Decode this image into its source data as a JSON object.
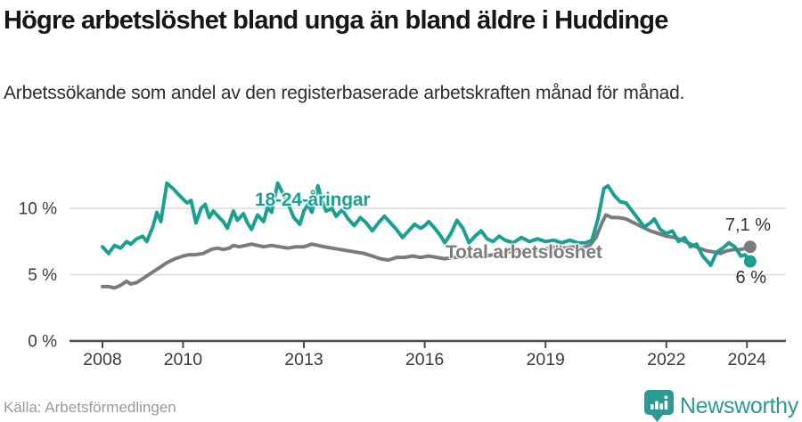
{
  "header": {
    "title": "Högre arbetslöshet bland unga än bland äldre i Huddinge",
    "subtitle": "Arbetssökande som andel av den registerbaserade arbetskraften månad för månad."
  },
  "footer": {
    "source": "Källa: Arbetsförmedlingen",
    "brand": "Newsworthy"
  },
  "colors": {
    "young_line": "#1aa093",
    "total_line": "#7b7b7b",
    "grid": "#dcdcdc",
    "axis": "#4a4a4a",
    "brand_teal": "#2a9a93"
  },
  "chart_data": {
    "type": "line",
    "title": "Högre arbetslöshet bland unga än bland äldre i Huddinge",
    "subtitle": "Arbetssökande som andel av den registerbaserade arbetskraften månad för månad.",
    "unit": "%",
    "grid": "horizontal",
    "legend_position": "inline-labels",
    "xlim": [
      2008,
      2024.2
    ],
    "ylim": [
      0,
      12.5
    ],
    "x_ticks": {
      "values": [
        2008,
        2010,
        2013,
        2016,
        2019,
        2022,
        2024
      ],
      "labels": [
        "2008",
        "2010",
        "2013",
        "2016",
        "2019",
        "2022",
        "2024"
      ]
    },
    "y_ticks": {
      "values": [
        0,
        5,
        10
      ],
      "labels": [
        "0 %",
        "5 %",
        "10 %"
      ]
    },
    "series": [
      {
        "name": "18-24-åringar",
        "color": "#1aa093",
        "end_label": "6 %",
        "end_value": 6.0,
        "points": [
          [
            2008.0,
            7.1
          ],
          [
            2008.15,
            6.6
          ],
          [
            2008.3,
            7.2
          ],
          [
            2008.45,
            7.0
          ],
          [
            2008.6,
            7.5
          ],
          [
            2008.7,
            7.3
          ],
          [
            2008.85,
            7.7
          ],
          [
            2009.0,
            7.9
          ],
          [
            2009.1,
            7.5
          ],
          [
            2009.25,
            8.6
          ],
          [
            2009.35,
            9.7
          ],
          [
            2009.45,
            9.0
          ],
          [
            2009.6,
            11.9
          ],
          [
            2009.75,
            11.5
          ],
          [
            2009.9,
            11.0
          ],
          [
            2010.0,
            10.7
          ],
          [
            2010.1,
            10.4
          ],
          [
            2010.2,
            10.6
          ],
          [
            2010.32,
            8.9
          ],
          [
            2010.45,
            10.0
          ],
          [
            2010.55,
            10.3
          ],
          [
            2010.65,
            9.3
          ],
          [
            2010.75,
            9.8
          ],
          [
            2010.9,
            9.3
          ],
          [
            2011.0,
            9.0
          ],
          [
            2011.1,
            8.5
          ],
          [
            2011.25,
            9.8
          ],
          [
            2011.35,
            9.1
          ],
          [
            2011.5,
            9.6
          ],
          [
            2011.6,
            8.9
          ],
          [
            2011.7,
            8.4
          ],
          [
            2011.85,
            9.5
          ],
          [
            2012.0,
            9.0
          ],
          [
            2012.1,
            10.1
          ],
          [
            2012.2,
            9.7
          ],
          [
            2012.35,
            11.9
          ],
          [
            2012.5,
            11.0
          ],
          [
            2012.6,
            10.4
          ],
          [
            2012.75,
            9.3
          ],
          [
            2012.9,
            8.8
          ],
          [
            2013.0,
            9.8
          ],
          [
            2013.1,
            10.3
          ],
          [
            2013.2,
            9.7
          ],
          [
            2013.35,
            11.7
          ],
          [
            2013.45,
            10.6
          ],
          [
            2013.55,
            9.8
          ],
          [
            2013.7,
            10.0
          ],
          [
            2013.8,
            9.4
          ],
          [
            2013.95,
            9.9
          ],
          [
            2014.1,
            9.2
          ],
          [
            2014.25,
            8.7
          ],
          [
            2014.4,
            9.3
          ],
          [
            2014.55,
            8.9
          ],
          [
            2014.7,
            8.3
          ],
          [
            2014.85,
            8.9
          ],
          [
            2015.0,
            9.4
          ],
          [
            2015.15,
            8.9
          ],
          [
            2015.3,
            8.4
          ],
          [
            2015.45,
            7.8
          ],
          [
            2015.6,
            8.3
          ],
          [
            2015.75,
            8.8
          ],
          [
            2015.9,
            8.5
          ],
          [
            2016.0,
            8.7
          ],
          [
            2016.1,
            9.0
          ],
          [
            2016.25,
            8.5
          ],
          [
            2016.4,
            7.9
          ],
          [
            2016.5,
            7.4
          ],
          [
            2016.65,
            8.1
          ],
          [
            2016.8,
            9.1
          ],
          [
            2016.95,
            8.5
          ],
          [
            2017.1,
            7.4
          ],
          [
            2017.25,
            7.9
          ],
          [
            2017.4,
            8.3
          ],
          [
            2017.55,
            7.7
          ],
          [
            2017.7,
            7.5
          ],
          [
            2017.85,
            7.9
          ],
          [
            2018.0,
            7.6
          ],
          [
            2018.2,
            7.4
          ],
          [
            2018.4,
            7.8
          ],
          [
            2018.6,
            7.5
          ],
          [
            2018.8,
            7.7
          ],
          [
            2019.0,
            7.5
          ],
          [
            2019.2,
            7.6
          ],
          [
            2019.4,
            7.4
          ],
          [
            2019.6,
            7.6
          ],
          [
            2019.8,
            7.4
          ],
          [
            2020.0,
            7.4
          ],
          [
            2020.15,
            7.6
          ],
          [
            2020.3,
            9.2
          ],
          [
            2020.45,
            11.5
          ],
          [
            2020.55,
            11.7
          ],
          [
            2020.7,
            11.0
          ],
          [
            2020.85,
            10.5
          ],
          [
            2021.0,
            10.4
          ],
          [
            2021.15,
            9.8
          ],
          [
            2021.3,
            9.2
          ],
          [
            2021.45,
            8.6
          ],
          [
            2021.6,
            8.9
          ],
          [
            2021.7,
            9.2
          ],
          [
            2021.85,
            8.4
          ],
          [
            2022.0,
            8.1
          ],
          [
            2022.15,
            8.3
          ],
          [
            2022.3,
            7.5
          ],
          [
            2022.45,
            7.8
          ],
          [
            2022.6,
            7.1
          ],
          [
            2022.75,
            7.3
          ],
          [
            2022.9,
            6.4
          ],
          [
            2023.05,
            5.9
          ],
          [
            2023.1,
            5.7
          ],
          [
            2023.25,
            6.7
          ],
          [
            2023.4,
            7.0
          ],
          [
            2023.55,
            7.4
          ],
          [
            2023.7,
            7.1
          ],
          [
            2023.85,
            6.4
          ],
          [
            2023.95,
            6.5
          ],
          [
            2024.08,
            6.0
          ]
        ]
      },
      {
        "name": "Total arbetslöshet",
        "color": "#7b7b7b",
        "end_label": "7,1 %",
        "end_value": 7.1,
        "points": [
          [
            2008.0,
            4.1
          ],
          [
            2008.15,
            4.1
          ],
          [
            2008.3,
            4.0
          ],
          [
            2008.45,
            4.2
          ],
          [
            2008.6,
            4.5
          ],
          [
            2008.7,
            4.3
          ],
          [
            2008.85,
            4.4
          ],
          [
            2009.0,
            4.7
          ],
          [
            2009.2,
            5.1
          ],
          [
            2009.4,
            5.5
          ],
          [
            2009.6,
            5.9
          ],
          [
            2009.8,
            6.2
          ],
          [
            2010.0,
            6.4
          ],
          [
            2010.15,
            6.5
          ],
          [
            2010.3,
            6.5
          ],
          [
            2010.5,
            6.6
          ],
          [
            2010.7,
            6.9
          ],
          [
            2010.85,
            7.0
          ],
          [
            2011.0,
            6.9
          ],
          [
            2011.15,
            7.0
          ],
          [
            2011.25,
            7.2
          ],
          [
            2011.4,
            7.1
          ],
          [
            2011.55,
            7.2
          ],
          [
            2011.7,
            7.3
          ],
          [
            2011.85,
            7.2
          ],
          [
            2012.0,
            7.1
          ],
          [
            2012.2,
            7.2
          ],
          [
            2012.4,
            7.1
          ],
          [
            2012.6,
            7.0
          ],
          [
            2012.8,
            7.1
          ],
          [
            2013.0,
            7.1
          ],
          [
            2013.2,
            7.3
          ],
          [
            2013.35,
            7.2
          ],
          [
            2013.5,
            7.1
          ],
          [
            2013.7,
            7.0
          ],
          [
            2013.9,
            6.9
          ],
          [
            2014.1,
            6.8
          ],
          [
            2014.3,
            6.7
          ],
          [
            2014.5,
            6.6
          ],
          [
            2014.7,
            6.4
          ],
          [
            2014.9,
            6.2
          ],
          [
            2015.1,
            6.1
          ],
          [
            2015.3,
            6.3
          ],
          [
            2015.5,
            6.3
          ],
          [
            2015.7,
            6.4
          ],
          [
            2015.9,
            6.3
          ],
          [
            2016.1,
            6.4
          ],
          [
            2016.3,
            6.3
          ],
          [
            2016.5,
            6.2
          ],
          [
            2016.7,
            6.3
          ],
          [
            2016.9,
            6.3
          ],
          [
            2017.1,
            6.4
          ],
          [
            2017.3,
            6.5
          ],
          [
            2017.5,
            6.4
          ],
          [
            2017.7,
            6.5
          ],
          [
            2017.9,
            6.6
          ],
          [
            2018.1,
            6.7
          ],
          [
            2018.3,
            6.8
          ],
          [
            2018.5,
            6.9
          ],
          [
            2018.7,
            6.8
          ],
          [
            2018.9,
            6.9
          ],
          [
            2019.1,
            7.0
          ],
          [
            2019.3,
            7.1
          ],
          [
            2019.5,
            7.0
          ],
          [
            2019.7,
            7.1
          ],
          [
            2019.9,
            7.0
          ],
          [
            2020.1,
            7.2
          ],
          [
            2020.25,
            7.8
          ],
          [
            2020.4,
            8.9
          ],
          [
            2020.5,
            9.5
          ],
          [
            2020.65,
            9.3
          ],
          [
            2020.8,
            9.3
          ],
          [
            2021.0,
            9.2
          ],
          [
            2021.2,
            8.9
          ],
          [
            2021.4,
            8.6
          ],
          [
            2021.6,
            8.3
          ],
          [
            2021.8,
            8.1
          ],
          [
            2022.0,
            7.9
          ],
          [
            2022.2,
            7.8
          ],
          [
            2022.4,
            7.6
          ],
          [
            2022.6,
            7.3
          ],
          [
            2022.8,
            7.0
          ],
          [
            2023.0,
            6.8
          ],
          [
            2023.2,
            6.7
          ],
          [
            2023.35,
            6.6
          ],
          [
            2023.5,
            6.8
          ],
          [
            2023.7,
            6.9
          ],
          [
            2023.85,
            6.9
          ],
          [
            2024.0,
            7.0
          ],
          [
            2024.08,
            7.1
          ]
        ]
      }
    ]
  }
}
